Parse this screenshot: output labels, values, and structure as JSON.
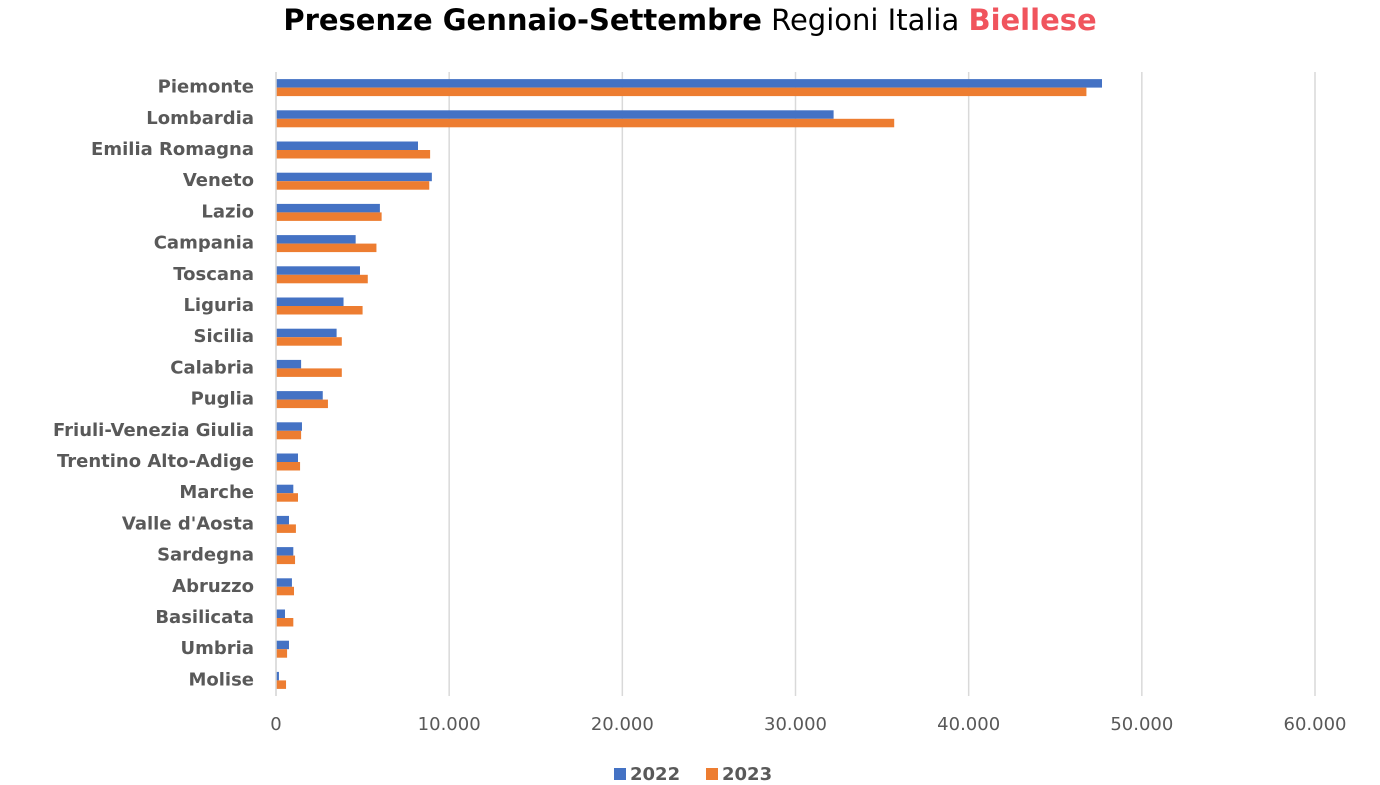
{
  "chart_data": {
    "type": "bar",
    "orientation": "horizontal",
    "title": [
      "Presenze Gennaio-Settembre",
      "Regioni Italia",
      "Biellese"
    ],
    "categories": [
      "Piemonte",
      "Lombardia",
      "Emilia Romagna",
      "Veneto",
      "Lazio",
      "Campania",
      "Toscana",
      "Liguria",
      "Sicilia",
      "Calabria",
      "Puglia",
      "Friuli-Venezia Giulia",
      "Trentino Alto-Adige",
      "Marche",
      "Valle d'Aosta",
      "Sardegna",
      "Abruzzo",
      "Basilicata",
      "Umbria",
      "Molise"
    ],
    "series": [
      {
        "name": "2022",
        "color": "#4472c4",
        "values": [
          47700,
          32200,
          8200,
          9000,
          6000,
          4600,
          4850,
          3900,
          3500,
          1450,
          2700,
          1500,
          1270,
          1000,
          750,
          1000,
          920,
          520,
          750,
          170
        ]
      },
      {
        "name": "2023",
        "color": "#ed7d31",
        "values": [
          46800,
          35700,
          8900,
          8850,
          6100,
          5800,
          5300,
          5000,
          3800,
          3800,
          3000,
          1450,
          1390,
          1270,
          1150,
          1100,
          1040,
          1000,
          640,
          580
        ]
      }
    ],
    "xlim": [
      0,
      60000
    ],
    "xticks": [
      0,
      {
        "value": 10000,
        "label": "10.000"
      },
      {
        "value": 20000,
        "label": "20.000"
      },
      {
        "value": 30000,
        "label": "30.000"
      },
      {
        "value": 40000,
        "label": "40.000"
      },
      {
        "value": 50000,
        "label": "50.000"
      },
      {
        "value": 60000,
        "label": "60.000"
      }
    ],
    "grid": true,
    "legend": "bottom"
  }
}
